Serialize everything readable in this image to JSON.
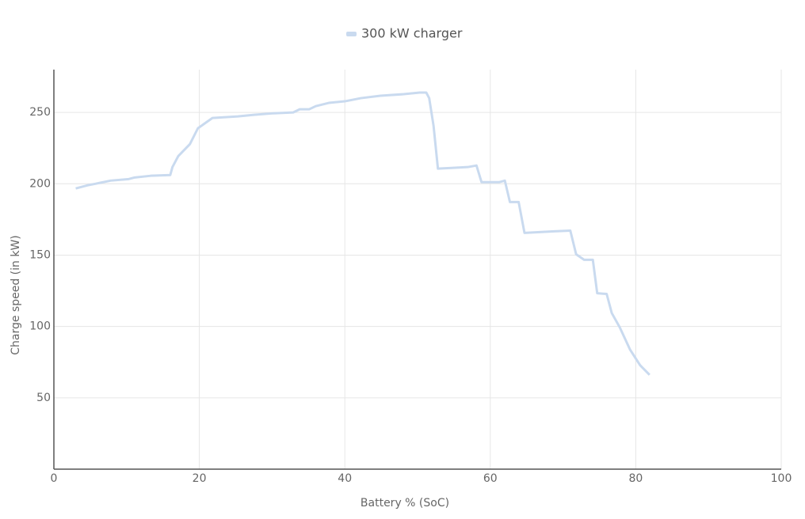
{
  "chart_data": {
    "type": "line",
    "x_label": "Battery % (SoC)",
    "y_label": "Charge speed (in kW)",
    "xlim": [
      0,
      100
    ],
    "xticks": [
      0,
      20,
      40,
      60,
      80,
      100
    ],
    "ylim": [
      0,
      280
    ],
    "yticks": [
      50,
      100,
      150,
      200,
      250
    ],
    "grid": true,
    "legend": "top",
    "series": [
      {
        "name": "300 kW charger",
        "color": "#c9daef",
        "x": [
          3.0,
          4.6,
          5.7,
          7.8,
          10.3,
          11.1,
          13.3,
          16.0,
          16.3,
          17.1,
          18.7,
          19.8,
          21.8,
          25.3,
          27.5,
          30.2,
          32.9,
          33.8,
          35.1,
          36.0,
          37.8,
          40.0,
          42.2,
          44.9,
          48.1,
          50.3,
          51.2,
          51.6,
          52.2,
          52.8,
          54.7,
          56.9,
          58.1,
          58.8,
          61.2,
          62.0,
          62.7,
          63.9,
          64.7,
          68.8,
          71.0,
          71.8,
          72.9,
          74.1,
          74.7,
          76.0,
          76.7,
          77.8,
          79.2,
          80.6,
          81.9
        ],
        "values": [
          196.7,
          198.9,
          200,
          202.2,
          203.3,
          204.4,
          205.6,
          206.1,
          211.7,
          219.4,
          227.8,
          238.9,
          246.1,
          247.2,
          248.3,
          249.4,
          250,
          252.2,
          252.2,
          254.4,
          256.7,
          257.8,
          260,
          261.7,
          262.8,
          263.9,
          263.9,
          260,
          240.6,
          210.6,
          211.1,
          211.7,
          212.8,
          201.1,
          201.1,
          202.2,
          187.2,
          187.2,
          165.6,
          166.7,
          167.2,
          150.6,
          146.7,
          146.7,
          123.3,
          122.8,
          109.4,
          99.4,
          83.9,
          72.8,
          66.1
        ]
      }
    ]
  }
}
